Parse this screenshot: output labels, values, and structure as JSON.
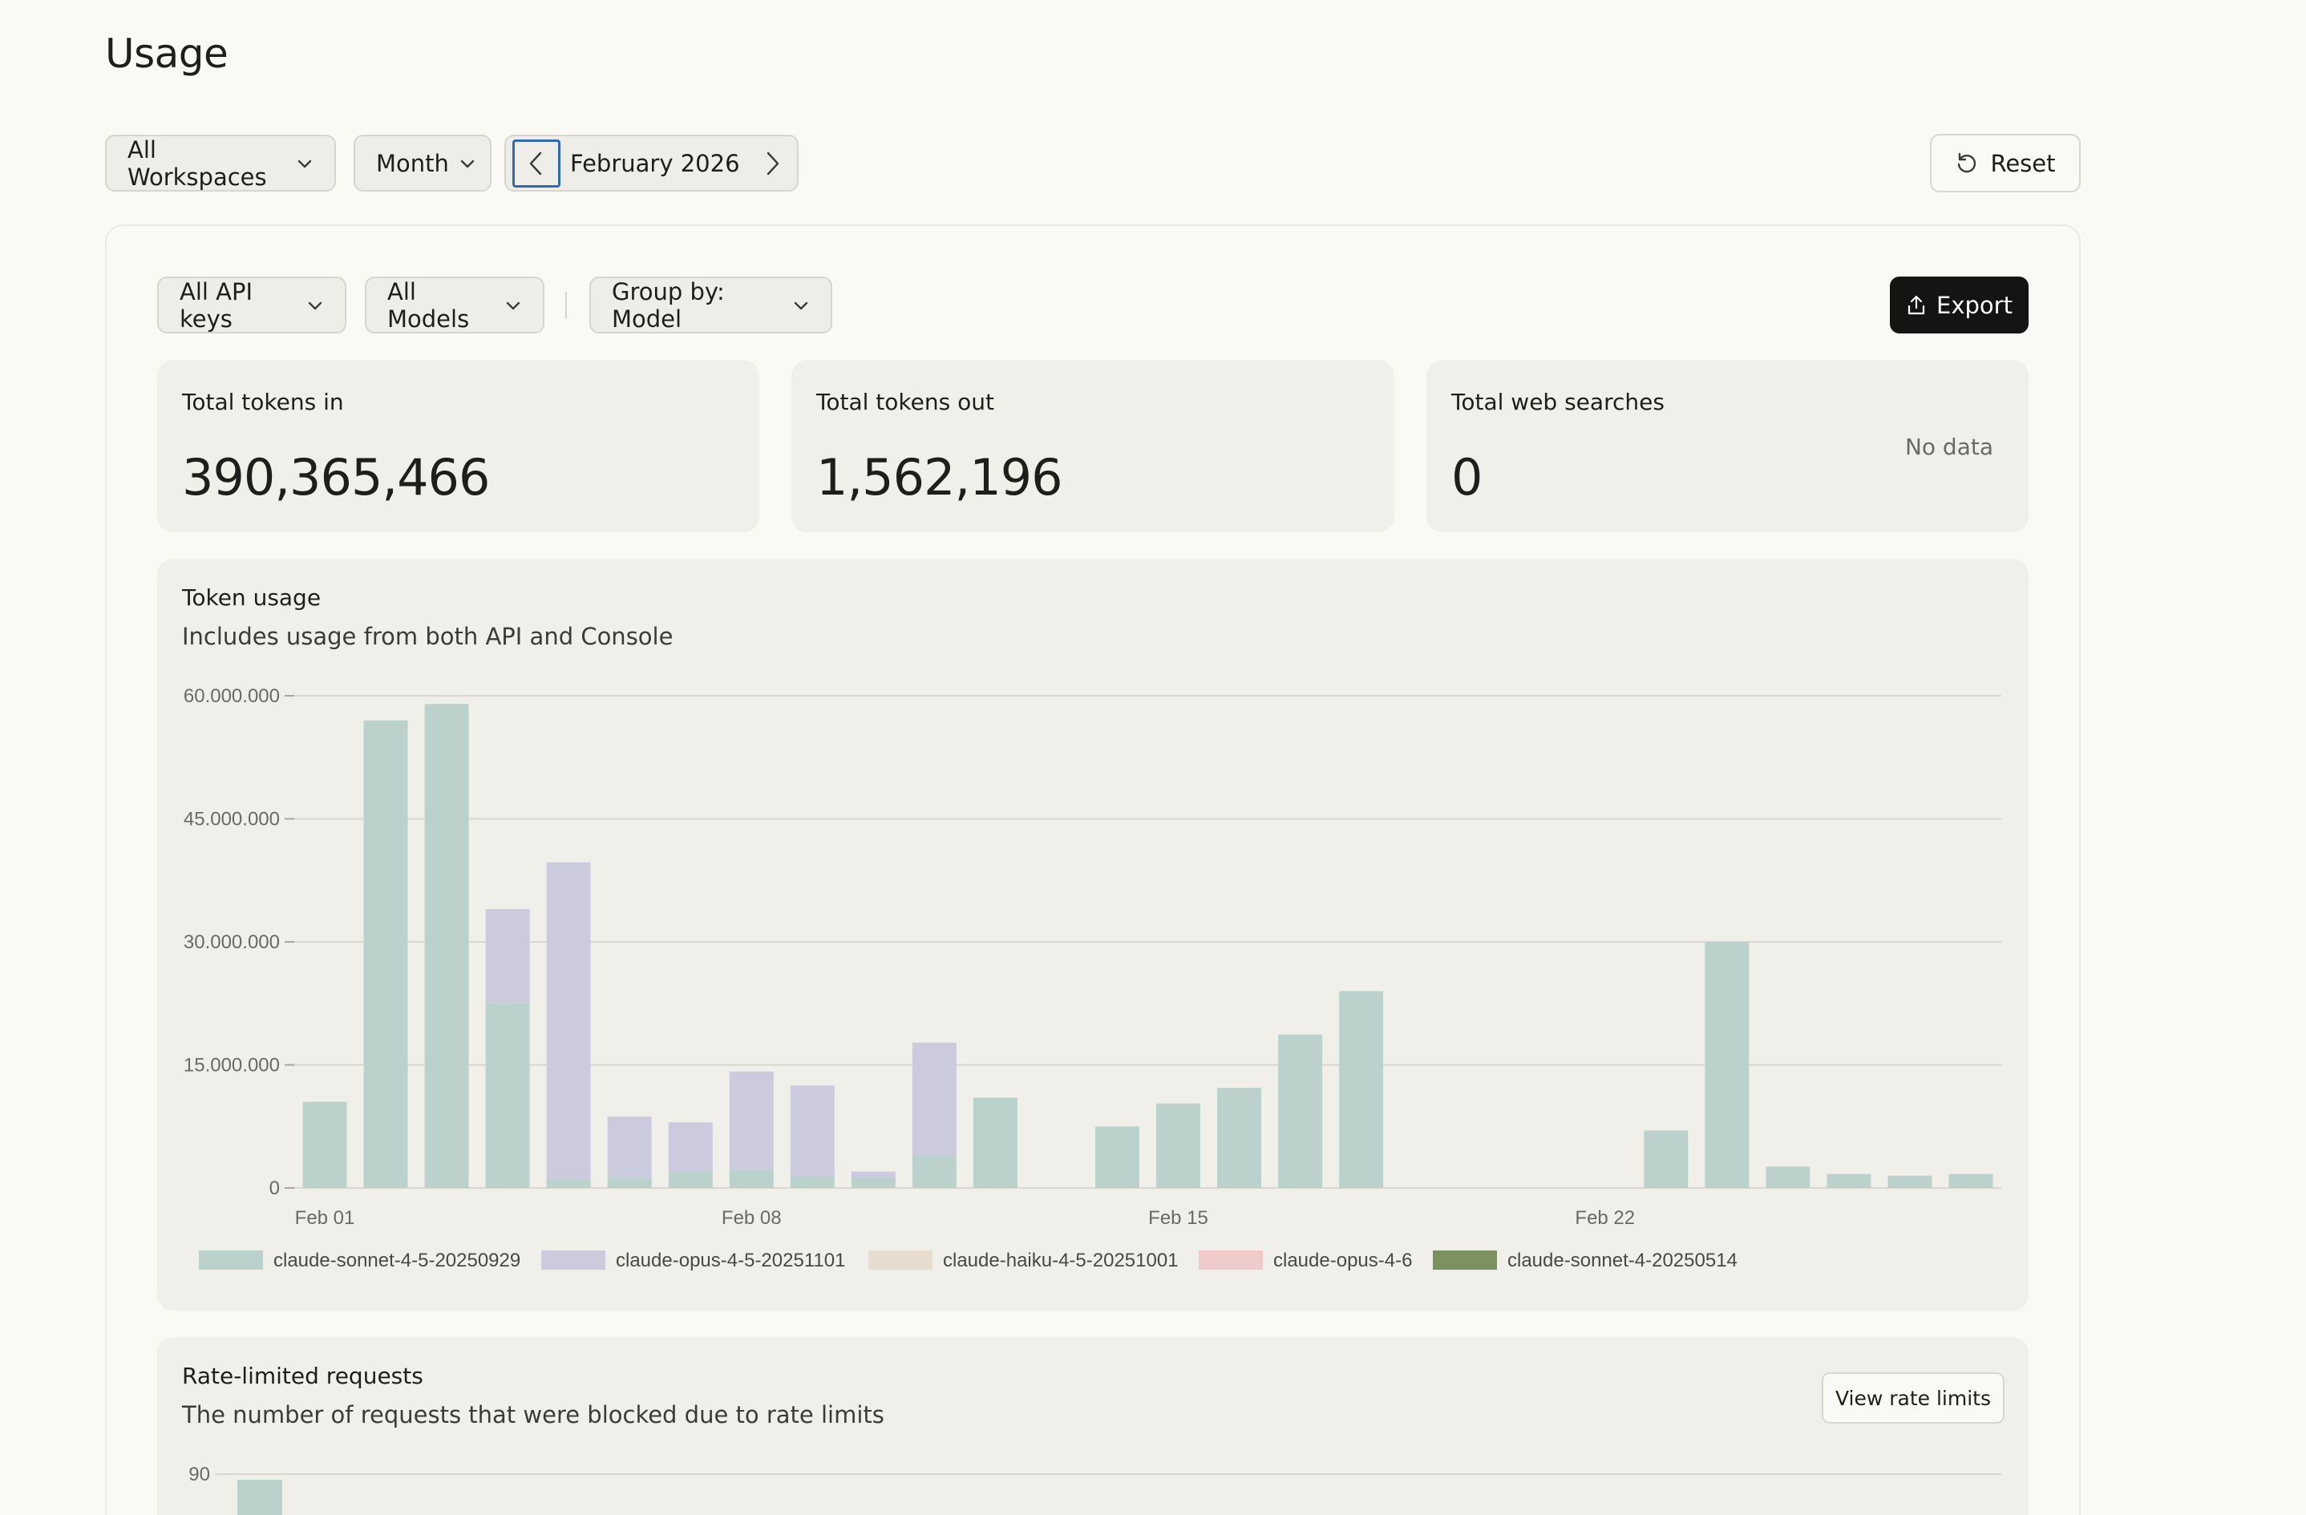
{
  "page": {
    "title": "Usage"
  },
  "filters": {
    "workspace": "All Workspaces",
    "period": "Month",
    "date": "February 2026",
    "reset": "Reset"
  },
  "panel": {
    "api_keys": "All API keys",
    "models": "All Models",
    "group_by": "Group by: Model",
    "export": "Export"
  },
  "stats": [
    {
      "label": "Total tokens in",
      "value": "390,365,466",
      "note": ""
    },
    {
      "label": "Total tokens out",
      "value": "1,562,196",
      "note": ""
    },
    {
      "label": "Total web searches",
      "value": "0",
      "note": "No data"
    }
  ],
  "token_usage": {
    "title": "Token usage",
    "subtitle": "Includes usage from both API and Console"
  },
  "rate_limited": {
    "title": "Rate-limited requests",
    "subtitle": "The number of requests that were blocked due to rate limits",
    "button": "View rate limits"
  },
  "colors": {
    "sonnet45": "#bbd2cc",
    "opus45": "#cccbdd",
    "haiku45": "#e6ddd0",
    "opus46": "#f0c9cb",
    "sonnet4": "#7c9160",
    "grid": "#d9d6cf"
  },
  "chart_data": [
    {
      "type": "bar",
      "stacked": true,
      "ylim": [
        0,
        60000000
      ],
      "yticks": [
        {
          "value": 0,
          "label": "0"
        },
        {
          "value": 15000000,
          "label": "15.000.000"
        },
        {
          "value": 30000000,
          "label": "30.000.000"
        },
        {
          "value": 45000000,
          "label": "45.000.000"
        },
        {
          "value": 60000000,
          "label": "60.000.000"
        }
      ],
      "categories": [
        "Feb 01",
        "Feb 02",
        "Feb 03",
        "Feb 04",
        "Feb 05",
        "Feb 06",
        "Feb 07",
        "Feb 08",
        "Feb 09",
        "Feb 10",
        "Feb 11",
        "Feb 12",
        "Feb 13",
        "Feb 14",
        "Feb 15",
        "Feb 16",
        "Feb 17",
        "Feb 18",
        "Feb 19",
        "Feb 20",
        "Feb 21",
        "Feb 22",
        "Feb 23",
        "Feb 24",
        "Feb 25",
        "Feb 26",
        "Feb 27",
        "Feb 28"
      ],
      "xtick_labels": [
        "Feb 01",
        "Feb 08",
        "Feb 15",
        "Feb 22"
      ],
      "legend_placement": "bottom",
      "grid": true,
      "series": [
        {
          "name": "claude-sonnet-4-5-20250929",
          "color_key": "sonnet45",
          "values": [
            10500000,
            57000000,
            59000000,
            22500000,
            1000000,
            1200000,
            2000000,
            2200000,
            1500000,
            1200000,
            4000000,
            11000000,
            0,
            7500000,
            10300000,
            12200000,
            18700000,
            24000000,
            0,
            0,
            0,
            0,
            7000000,
            30000000,
            2600000,
            1700000,
            1500000,
            1700000
          ]
        },
        {
          "name": "claude-opus-4-5-20251101",
          "color_key": "opus45",
          "values": [
            0,
            0,
            0,
            11500000,
            38700000,
            7500000,
            6000000,
            12000000,
            11000000,
            800000,
            13700000,
            0,
            0,
            0,
            0,
            0,
            0,
            0,
            0,
            0,
            0,
            0,
            0,
            0,
            0,
            0,
            0,
            0
          ]
        },
        {
          "name": "claude-haiku-4-5-20251001",
          "color_key": "haiku45",
          "values": [
            0,
            0,
            0,
            0,
            0,
            0,
            0,
            0,
            0,
            0,
            0,
            0,
            0,
            0,
            0,
            0,
            0,
            0,
            0,
            0,
            0,
            0,
            0,
            0,
            0,
            0,
            0,
            0
          ]
        },
        {
          "name": "claude-opus-4-6",
          "color_key": "opus46",
          "values": [
            0,
            0,
            0,
            0,
            0,
            0,
            0,
            0,
            0,
            0,
            0,
            0,
            0,
            0,
            0,
            0,
            0,
            0,
            0,
            0,
            0,
            0,
            0,
            0,
            0,
            0,
            0,
            0
          ]
        },
        {
          "name": "claude-sonnet-4-20250514",
          "color_key": "sonnet4",
          "values": [
            0,
            0,
            0,
            0,
            0,
            0,
            0,
            0,
            0,
            0,
            0,
            0,
            0,
            0,
            0,
            0,
            0,
            0,
            0,
            0,
            0,
            0,
            0,
            0,
            0,
            0,
            0,
            0
          ]
        }
      ]
    },
    {
      "type": "bar",
      "ytick_labels": [
        "90"
      ],
      "note": "partially visible"
    }
  ]
}
